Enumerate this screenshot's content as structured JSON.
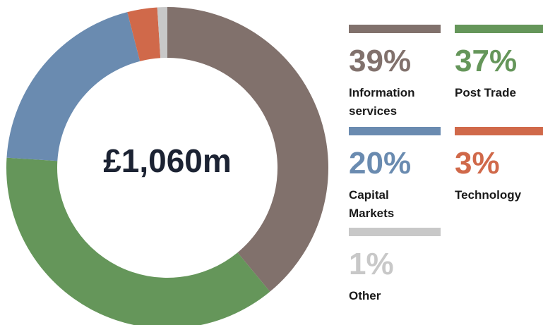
{
  "chart_data": {
    "type": "donut",
    "center_label": "£1,060m",
    "categories": [
      "Information services",
      "Post Trade",
      "Capital Markets",
      "Technology",
      "Other"
    ],
    "values": [
      39,
      37,
      20,
      3,
      1
    ],
    "value_labels": [
      "39%",
      "37%",
      "20%",
      "3%",
      "1%"
    ],
    "colors": [
      "#81716c",
      "#65965a",
      "#6a8bb0",
      "#d0694a",
      "#c8c8c8"
    ]
  }
}
